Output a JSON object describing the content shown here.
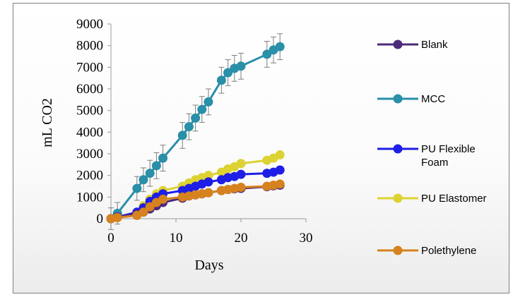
{
  "chart_data": {
    "type": "line",
    "title": "",
    "xlabel": "Days",
    "ylabel": "mL CO2",
    "xlim": [
      0,
      30
    ],
    "ylim": [
      0,
      9000
    ],
    "xticks": [
      0,
      10,
      20,
      30
    ],
    "yticks": [
      0,
      1000,
      2000,
      3000,
      4000,
      5000,
      6000,
      7000,
      8000,
      9000
    ],
    "grid": false,
    "legend_position": "right",
    "series": [
      {
        "name": "Blank",
        "color": "#4b2a7b",
        "x": [
          0,
          1,
          4,
          5,
          6,
          7,
          8,
          11,
          12,
          13,
          14,
          15,
          17,
          18,
          19,
          20,
          24,
          25,
          26
        ],
        "y": [
          0,
          80,
          200,
          300,
          450,
          600,
          750,
          950,
          1050,
          1100,
          1150,
          1200,
          1300,
          1350,
          1380,
          1400,
          1480,
          1520,
          1550
        ],
        "error": []
      },
      {
        "name": "MCC",
        "color": "#2a8fa8",
        "x": [
          0,
          1,
          4,
          5,
          6,
          7,
          8,
          11,
          12,
          13,
          14,
          15,
          17,
          18,
          19,
          20,
          24,
          25,
          26
        ],
        "y": [
          0,
          250,
          1400,
          1800,
          2100,
          2450,
          2800,
          3850,
          4250,
          4650,
          5050,
          5400,
          6400,
          6750,
          6950,
          7050,
          7600,
          7800,
          7950
        ],
        "error": [
          500,
          500,
          550,
          550,
          600,
          600,
          600,
          600,
          600,
          600,
          600,
          600,
          600,
          600,
          600,
          600,
          600,
          600,
          600
        ]
      },
      {
        "name": "PU Flexible Foam",
        "color": "#1e1ee6",
        "x": [
          0,
          1,
          4,
          5,
          6,
          7,
          8,
          11,
          12,
          13,
          14,
          15,
          17,
          18,
          19,
          20,
          24,
          25,
          26
        ],
        "y": [
          0,
          80,
          300,
          500,
          800,
          1000,
          1150,
          1300,
          1400,
          1500,
          1600,
          1700,
          1800,
          1900,
          1950,
          2050,
          2100,
          2150,
          2250
        ],
        "error": []
      },
      {
        "name": "PU Elastomer",
        "color": "#dcd232",
        "x": [
          0,
          1,
          4,
          5,
          6,
          7,
          8,
          11,
          12,
          13,
          14,
          15,
          17,
          18,
          19,
          20,
          24,
          25,
          26
        ],
        "y": [
          0,
          80,
          300,
          600,
          900,
          1150,
          1300,
          1500,
          1650,
          1800,
          1900,
          2000,
          2150,
          2300,
          2400,
          2550,
          2700,
          2800,
          2950
        ],
        "error": []
      },
      {
        "name": "Polethylene",
        "color": "#d6821e",
        "x": [
          0,
          1,
          4,
          5,
          6,
          7,
          8,
          11,
          12,
          13,
          14,
          15,
          17,
          18,
          19,
          20,
          24,
          25,
          26
        ],
        "y": [
          0,
          50,
          150,
          300,
          550,
          750,
          900,
          1000,
          1050,
          1100,
          1150,
          1200,
          1300,
          1350,
          1400,
          1450,
          1500,
          1550,
          1600
        ],
        "error": []
      }
    ]
  }
}
